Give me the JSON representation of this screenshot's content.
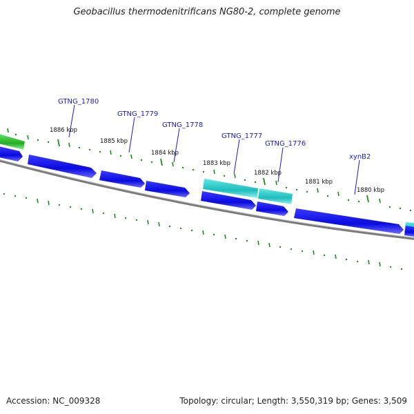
{
  "title": "Geobacillus thermodenitrificans NG80-2, complete genome",
  "footer": {
    "accession": "Accession: NC_009328",
    "summary": "Topology: circular; Length: 3,550,319 bp; Genes: 3,509"
  },
  "colors": {
    "gene_blue": "#1212e8",
    "gene_cyan": "#28c8c8",
    "gene_green": "#2fb82f",
    "backbone": "#808080",
    "tick": "#1a8a1a",
    "label": "#1a1acc"
  },
  "ticks": [
    "1886 kbp",
    "1885 kbp",
    "1884 kbp",
    "1883 kbp",
    "1882 kbp",
    "1881 kbp",
    "1880 kbp"
  ],
  "gene_labels": [
    "GTNG_1780",
    "GTNG_1779",
    "GTNG_1778",
    "GTNG_1777",
    "GTNG_1776",
    "xynB2"
  ]
}
